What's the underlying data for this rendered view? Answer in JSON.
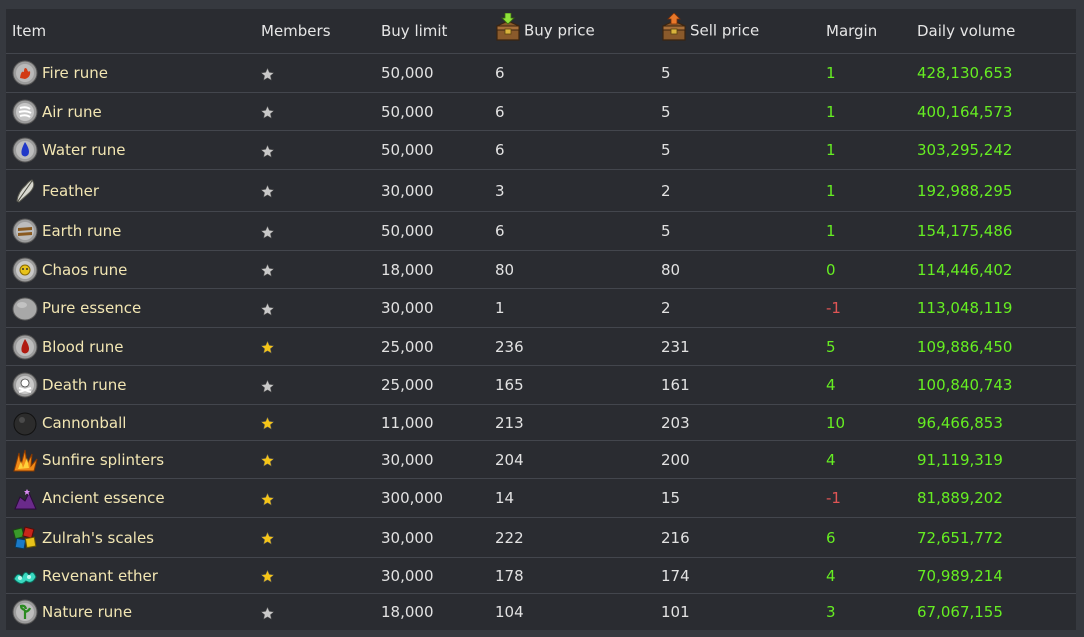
{
  "headers": {
    "item": "Item",
    "members": "Members",
    "buy_limit": "Buy limit",
    "buy_price": "Buy price",
    "sell_price": "Sell price",
    "margin": "Margin",
    "daily_volume": "Daily volume"
  },
  "colors": {
    "item_link": "#f2e6b3",
    "positive": "#66ee22",
    "negative": "#e05555",
    "star_members": "#f5c518",
    "star_free": "#c9c9c9"
  },
  "rows": [
    {
      "name": "Fire rune",
      "icon": "fire-rune-icon",
      "members": false,
      "buy_limit": "50,000",
      "buy_price": "6",
      "sell_price": "5",
      "margin": "1",
      "volume": "428,130,653"
    },
    {
      "name": "Air rune",
      "icon": "air-rune-icon",
      "members": false,
      "buy_limit": "50,000",
      "buy_price": "6",
      "sell_price": "5",
      "margin": "1",
      "volume": "400,164,573"
    },
    {
      "name": "Water rune",
      "icon": "water-rune-icon",
      "members": false,
      "buy_limit": "50,000",
      "buy_price": "6",
      "sell_price": "5",
      "margin": "1",
      "volume": "303,295,242"
    },
    {
      "name": "Feather",
      "icon": "feather-icon",
      "members": false,
      "buy_limit": "30,000",
      "buy_price": "3",
      "sell_price": "2",
      "margin": "1",
      "volume": "192,988,295"
    },
    {
      "name": "Earth rune",
      "icon": "earth-rune-icon",
      "members": false,
      "buy_limit": "50,000",
      "buy_price": "6",
      "sell_price": "5",
      "margin": "1",
      "volume": "154,175,486"
    },
    {
      "name": "Chaos rune",
      "icon": "chaos-rune-icon",
      "members": false,
      "buy_limit": "18,000",
      "buy_price": "80",
      "sell_price": "80",
      "margin": "0",
      "volume": "114,446,402"
    },
    {
      "name": "Pure essence",
      "icon": "pure-essence-icon",
      "members": false,
      "buy_limit": "30,000",
      "buy_price": "1",
      "sell_price": "2",
      "margin": "-1",
      "volume": "113,048,119"
    },
    {
      "name": "Blood rune",
      "icon": "blood-rune-icon",
      "members": true,
      "buy_limit": "25,000",
      "buy_price": "236",
      "sell_price": "231",
      "margin": "5",
      "volume": "109,886,450"
    },
    {
      "name": "Death rune",
      "icon": "death-rune-icon",
      "members": false,
      "buy_limit": "25,000",
      "buy_price": "165",
      "sell_price": "161",
      "margin": "4",
      "volume": "100,840,743"
    },
    {
      "name": "Cannonball",
      "icon": "cannonball-icon",
      "members": true,
      "buy_limit": "11,000",
      "buy_price": "213",
      "sell_price": "203",
      "margin": "10",
      "volume": "96,466,853"
    },
    {
      "name": "Sunfire splinters",
      "icon": "sunfire-splinters-icon",
      "members": true,
      "buy_limit": "30,000",
      "buy_price": "204",
      "sell_price": "200",
      "margin": "4",
      "volume": "91,119,319"
    },
    {
      "name": "Ancient essence",
      "icon": "ancient-essence-icon",
      "members": true,
      "buy_limit": "300,000",
      "buy_price": "14",
      "sell_price": "15",
      "margin": "-1",
      "volume": "81,889,202"
    },
    {
      "name": "Zulrah's scales",
      "icon": "zulrahs-scales-icon",
      "members": true,
      "buy_limit": "30,000",
      "buy_price": "222",
      "sell_price": "216",
      "margin": "6",
      "volume": "72,651,772"
    },
    {
      "name": "Revenant ether",
      "icon": "revenant-ether-icon",
      "members": true,
      "buy_limit": "30,000",
      "buy_price": "178",
      "sell_price": "174",
      "margin": "4",
      "volume": "70,989,214"
    },
    {
      "name": "Nature rune",
      "icon": "nature-rune-icon",
      "members": false,
      "buy_limit": "18,000",
      "buy_price": "104",
      "sell_price": "101",
      "margin": "3",
      "volume": "67,067,155"
    }
  ]
}
